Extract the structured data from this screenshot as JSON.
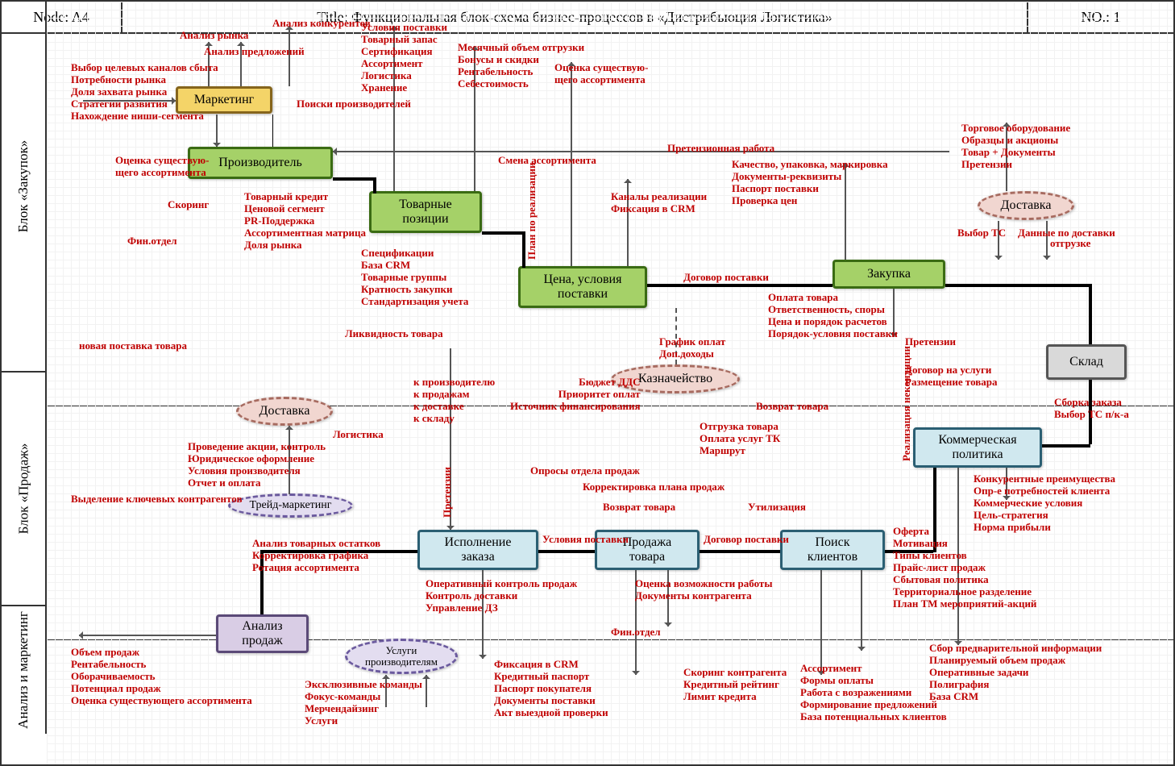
{
  "header": {
    "node_label": "Node: A4",
    "title": "Title: Функциональная блок-схема бизнес-процессов в «Дистрибьюция Логистика»",
    "no_label": "NO.: 1"
  },
  "sections": {
    "purchasing": "Блок «Закупок»",
    "sales": "Блок «Продаж»",
    "analysis": "Анализ и маркетинг"
  },
  "colors": {
    "yellow_fill": "#f4d468",
    "yellow_border": "#86651c",
    "green_fill": "#a5d168",
    "green_border": "#3a6b13",
    "blue_fill": "#d0e8ef",
    "blue_border": "#2b5f73",
    "purple_fill": "#d9cde5",
    "purple_border": "#5b4a78",
    "pink_fill": "#f1d6d0",
    "pink_border": "#a76b60",
    "gray_fill": "#d9d9d9",
    "gray_border": "#555555",
    "lav_fill": "#e3ddf0",
    "lav_border": "#6b5a9e",
    "annotation": "#c00000"
  },
  "nodes": {
    "marketing": "Маркетинг",
    "manufacturer": "Производитель",
    "product_items": "Товарные позиции",
    "price_terms": "Цена, условия поставки",
    "purchase": "Закупка",
    "delivery1": "Доставка",
    "warehouse": "Склад",
    "treasury": "Казначейство",
    "delivery2": "Доставка",
    "trade_marketing": "Трейд-маркетинг",
    "commercial_policy": "Коммерческая политика",
    "order_execution": "Исполнение заказа",
    "product_sale": "Продажа товара",
    "client_search": "Поиск клиентов",
    "sales_analysis": "Анализ продаж",
    "manufacturer_services": "Услуги производителям"
  },
  "annotations": {
    "a1": "Выбор целевых каналов сбыта\nПотребности рынка\nДоля захвата рынка\nСтратегии развития\nНахождение ниши-сегмента",
    "a2": "Анализ рынка",
    "a3": "Анализ предложений",
    "a4": "Анализ конкурентов",
    "a5": "Оценка существую-\nщего ассортимента",
    "a6": "Скоринг",
    "a7": "Фин.отдел",
    "a8": "Товарный кредит\nЦеновой сегмент\nPR-Поддержка\nАссортиментная матрица\nДоля рынка",
    "a9": "Поиски производителей",
    "a10": "Условия поставки\nТоварный запас\nСертификация\nАссортимент\nЛогистика\nХранение",
    "a11": "Месячный объем отгрузки\nБонусы и скидки\nРентабельность\nСебестоимость",
    "a12": "Оценка существую-\nщего ассортимента",
    "a13": "Смена ассортимента",
    "a14": "Претензионная работа",
    "a15": "Спецификации\nБаза CRM\nТоварные группы\nКратность закупки\nСтандартизация учета",
    "a16": "Ликвидность товара",
    "a17": "План по реализации",
    "a18": "Каналы реализации\nФиксация в CRM",
    "a19": "Договор поставки",
    "a20": "Качество, упаковка, маркировка\nДокументы-реквизиты\nПаспорт поставки\nПроверка цен",
    "a21": "Оплата товара\nОтветственность, споры\nЦена и порядок расчетов\nПорядок-условия поставки",
    "a22": "Торговое оборудование\nОбразцы и акционы\nТовар + Документы\nПретензии",
    "a23": "Выбор ТС",
    "a24": "Данные по доставки",
    "a24b": "отгрузке",
    "a25": "Претензии",
    "a26": "График оплат\nДоп.доходы",
    "a27": "Бюджет ДДС\nПриоритет оплат\nИсточник финансирования",
    "a28": "новая поставка товара",
    "a29": "к производителю\nк продажам\nк доставке\nк складу",
    "a30": "Логистика",
    "a31": "Проведение акции, контроль\nЮридическое оформление\nУсловия производителя\nОтчет и оплата",
    "a32": "Выделение ключевых контрагентов",
    "a33": "Анализ товарных остатков\nКорректировка графика\nРотация ассортимента",
    "a34": "Претензии",
    "a35": "Опросы отдела продаж",
    "a36": "Корректировка плана продаж",
    "a37": "Возврат товара",
    "a38": "Условия поставки",
    "a39": "Договор поставки",
    "a40": "Утилизация",
    "a41": "Отгрузка товара\nОплата услуг ТК\nМаршрут",
    "a42": "Договор на услуги",
    "a43": "Размещение товара",
    "a44": "Возврат товара",
    "a45": "Реализация некондиции",
    "a46": "Сборка заказа\nВыбор ТС п/к-а",
    "a47": "Конкурентные преимущества\nОпр-е потребностей клиента\nКоммерческие условия\nЦель-стратегия\nНорма прибыли",
    "a48": "Оферта\nМотивация\nТипы клиентов\nПрайс-лист продаж\nСбытовая политика\nТерриториальное разделение\nПлан ТМ мероприятий-акций",
    "a49": "Оперативный контроль продаж\nКонтроль доставки\nУправление ДЗ",
    "a50": "Оценка возможности работы\nДокументы контрагента",
    "a51": "Фин.отдел",
    "a52": "Фиксация в CRM\nКредитный паспорт\nПаспорт покупателя\nДокументы поставки\nАкт выездной проверки",
    "a53": "Скоринг контрагента\nКредитный рейтинг\nЛимит кредита",
    "a54": "Ассортимент\nФормы оплаты\nРабота с возражениями\nФормирование предложений\nБаза потенциальных клиентов",
    "a55": "Сбор предварительной информации\nПланируемый объем продаж\nОперативные задачи\nПолиграфия\nБаза CRM",
    "a56": "Объем продаж\nРентабельность\nОборачиваемость\nПотенциал продаж\nОценка существующего ассортимента",
    "a57": "Эксклюзивные команды\nФокус-команды\nМерчендайзинг\nУслуги"
  }
}
